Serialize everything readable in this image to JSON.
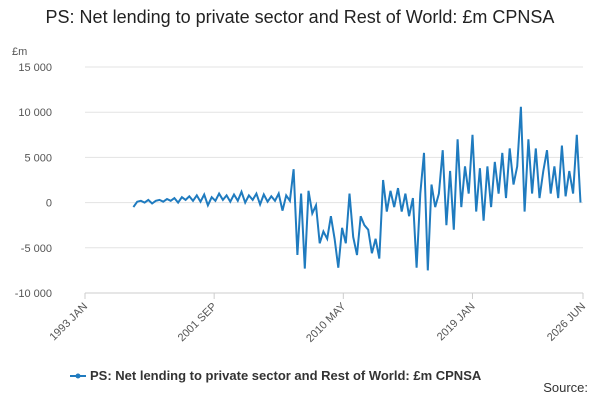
{
  "chart_data": {
    "type": "line",
    "title": "PS: Net lending to private sector and Rest of World: £m CPNSA",
    "y_label": "£m",
    "source": "Source:",
    "x": [
      "1996 APR",
      "1996 JUL",
      "1996 OCT",
      "1997 JAN",
      "1997 APR",
      "1997 JUL",
      "1997 OCT",
      "1998 JAN",
      "1998 APR",
      "1998 JUL",
      "1998 OCT",
      "1999 JAN",
      "1999 APR",
      "1999 JUL",
      "1999 OCT",
      "2000 JAN",
      "2000 APR",
      "2000 JUL",
      "2000 OCT",
      "2001 JAN",
      "2001 APR",
      "2001 JUL",
      "2001 OCT",
      "2002 JAN",
      "2002 APR",
      "2002 JUL",
      "2002 OCT",
      "2003 JAN",
      "2003 APR",
      "2003 JUL",
      "2003 OCT",
      "2004 JAN",
      "2004 APR",
      "2004 JUL",
      "2004 OCT",
      "2005 JAN",
      "2005 APR",
      "2005 JUL",
      "2005 OCT",
      "2006 JAN",
      "2006 APR",
      "2006 JUL",
      "2006 OCT",
      "2007 JAN",
      "2007 APR",
      "2007 JUL",
      "2007 OCT",
      "2008 JAN",
      "2008 APR",
      "2008 JUL",
      "2008 OCT",
      "2009 JAN",
      "2009 APR",
      "2009 JUL",
      "2009 OCT",
      "2010 JAN",
      "2010 APR",
      "2010 JUL",
      "2010 OCT",
      "2011 JAN",
      "2011 APR",
      "2011 JUL",
      "2011 OCT",
      "2012 JAN",
      "2012 APR",
      "2012 JUL",
      "2012 OCT",
      "2013 JAN",
      "2013 APR",
      "2013 JUL",
      "2013 OCT",
      "2014 JAN",
      "2014 APR",
      "2014 JUL",
      "2014 OCT",
      "2015 JAN",
      "2015 APR",
      "2015 JUL",
      "2015 OCT",
      "2016 JAN",
      "2016 APR",
      "2016 JUL",
      "2016 OCT",
      "2017 JAN",
      "2017 APR",
      "2017 JUL",
      "2017 OCT",
      "2018 JAN",
      "2018 APR",
      "2018 JUL",
      "2018 OCT",
      "2019 JAN",
      "2019 APR",
      "2019 JUL",
      "2019 OCT",
      "2020 JAN",
      "2020 APR",
      "2020 JUL",
      "2020 OCT",
      "2021 JAN",
      "2021 APR",
      "2021 JUL",
      "2021 OCT",
      "2022 JAN",
      "2022 APR",
      "2022 JUL",
      "2022 OCT",
      "2023 JAN",
      "2023 APR",
      "2023 JUL",
      "2023 OCT",
      "2024 JAN",
      "2024 APR",
      "2024 JUL",
      "2024 OCT",
      "2025 JAN",
      "2025 APR",
      "2025 JUL",
      "2025 OCT",
      "2026 JAN",
      "2026 APR"
    ],
    "series": [
      {
        "name": "PS: Net lending to private sector and Rest of World: £m CPNSA",
        "color": "#1f7bbf",
        "values": [
          -500,
          100,
          200,
          0,
          300,
          -100,
          200,
          300,
          100,
          400,
          200,
          500,
          0,
          600,
          300,
          700,
          200,
          800,
          100,
          900,
          -300,
          600,
          200,
          1000,
          300,
          800,
          100,
          900,
          200,
          1200,
          0,
          800,
          300,
          1000,
          -200,
          900,
          100,
          700,
          200,
          1000,
          -900,
          800,
          200,
          3700,
          -5800,
          1000,
          -7300,
          1300,
          -1200,
          -300,
          -4500,
          -3200,
          -4000,
          -1500,
          -4000,
          -7200,
          -2800,
          -4500,
          1000,
          -3800,
          -5800,
          -1500,
          -2500,
          -3000,
          -5600,
          -4000,
          -6200,
          2500,
          -1000,
          1300,
          -500,
          1600,
          -1000,
          1000,
          -1500,
          500,
          -7200,
          1000,
          5500,
          -7500,
          2000,
          -500,
          1000,
          5800,
          -2500,
          3500,
          -3000,
          7000,
          -500,
          4000,
          1000,
          7500,
          -1000,
          3800,
          -2000,
          4000,
          -500,
          4500,
          1000,
          5500,
          500,
          6000,
          2000,
          4000,
          10600,
          -1000,
          7000,
          1000,
          6000,
          500,
          3500,
          5800,
          1000,
          4000,
          500,
          6300,
          700,
          3500,
          1000,
          7500,
          0
        ]
      }
    ],
    "xlim": [
      "1993 JAN",
      "2026 JUN"
    ],
    "xticks": [
      "1993 JAN",
      "2001 SEP",
      "2010 MAY",
      "2019 JAN",
      "2026 JUN"
    ],
    "ylim": [
      -10000,
      15000
    ],
    "yticks": [
      {
        "value": -10000,
        "label": "-10 000"
      },
      {
        "value": -5000,
        "label": "-5 000"
      },
      0,
      {
        "value": 5000,
        "label": "5 000"
      },
      {
        "value": 10000,
        "label": "10 000"
      },
      {
        "value": 15000,
        "label": "15 000"
      }
    ],
    "grid": true
  }
}
